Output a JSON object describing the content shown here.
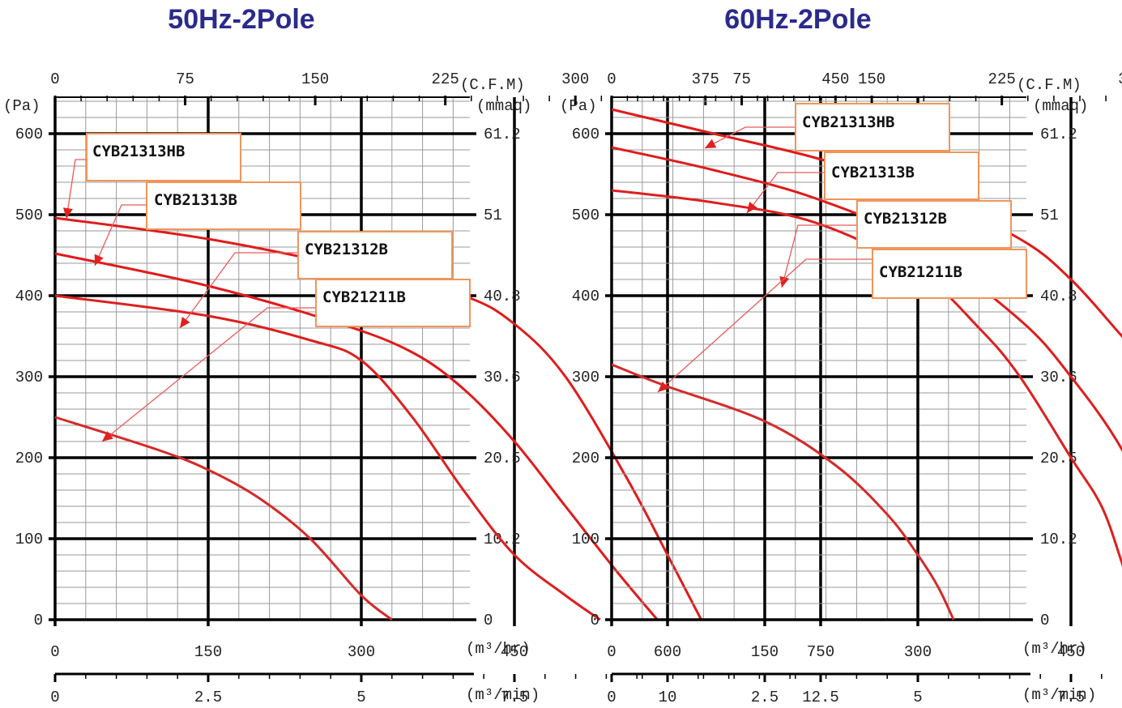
{
  "chart_data": [
    {
      "type": "line",
      "title": "50Hz-2Pole",
      "left_axis_label": "(Pa)",
      "right_axis_label": "(mmaq)",
      "top_axis_label": "(C.F.M)",
      "bottom_axis_label": "(m³/hr)",
      "bottom2_axis_label": "(m³/min)",
      "y_ticks": [
        "0",
        "100",
        "200",
        "300",
        "400",
        "500",
        "600"
      ],
      "y2_ticks": [
        "0",
        "10.2",
        "20.5",
        "30.6",
        "40.8",
        "51",
        "61.2"
      ],
      "top_ticks": [
        "0",
        "75",
        "150",
        "225",
        "300",
        "375",
        "450"
      ],
      "x_ticks": [
        "0",
        "150",
        "300",
        "450",
        "600",
        "750"
      ],
      "x2_ticks": [
        "0",
        "2.5",
        "5",
        "7.5",
        "10",
        "12.5"
      ],
      "xlim": [
        0,
        810
      ],
      "ylim": [
        0,
        640
      ],
      "series": [
        {
          "name": "CYB21313HB",
          "x": [
            0,
            150,
            300,
            400,
            450,
            500,
            560,
            600,
            633
          ],
          "y": [
            496,
            470,
            432,
            400,
            365,
            300,
            175,
            80,
            0
          ]
        },
        {
          "name": "CYB21313B",
          "x": [
            0,
            150,
            280,
            350,
            400,
            450,
            500,
            550,
            590
          ],
          "y": [
            452,
            412,
            365,
            330,
            285,
            220,
            140,
            60,
            0
          ]
        },
        {
          "name": "CYB21312B",
          "x": [
            0,
            150,
            250,
            300,
            350,
            400,
            450,
            500,
            534
          ],
          "y": [
            400,
            375,
            345,
            320,
            250,
            160,
            80,
            30,
            0
          ]
        },
        {
          "name": "CYB21211B",
          "x": [
            0,
            100,
            150,
            200,
            250,
            300,
            330
          ],
          "y": [
            250,
            210,
            185,
            150,
            100,
            30,
            0
          ]
        }
      ]
    },
    {
      "type": "line",
      "title": "60Hz-2Pole",
      "left_axis_label": "(Pa)",
      "right_axis_label": "(mmaq)",
      "top_axis_label": "(C.F.M)",
      "bottom_axis_label": "(m³/hr)",
      "bottom2_axis_label": "(m³/min)",
      "y_ticks": [
        "0",
        "100",
        "200",
        "300",
        "400",
        "500",
        "600"
      ],
      "y2_ticks": [
        "0",
        "10.2",
        "20.5",
        "30.6",
        "40.8",
        "51",
        "61.2"
      ],
      "top_ticks": [
        "0",
        "75",
        "150",
        "225",
        "300",
        "375",
        "450"
      ],
      "x_ticks": [
        "0",
        "150",
        "300",
        "450",
        "600",
        "750"
      ],
      "x2_ticks": [
        "0",
        "2.5",
        "5",
        "7.5",
        "10",
        "12.5"
      ],
      "xlim": [
        0,
        810
      ],
      "ylim": [
        0,
        640
      ],
      "series": [
        {
          "name": "CYB21313HB",
          "x": [
            0,
            100,
            200,
            300,
            400,
            450,
            500,
            550,
            600,
            650,
            666
          ],
          "y": [
            630,
            600,
            570,
            530,
            470,
            420,
            350,
            280,
            200,
            80,
            0
          ]
        },
        {
          "name": "CYB21313B",
          "x": [
            0,
            100,
            200,
            300,
            400,
            450,
            500,
            540,
            564
          ],
          "y": [
            583,
            555,
            520,
            465,
            370,
            300,
            210,
            100,
            0
          ]
        },
        {
          "name": "CYB21312B",
          "x": [
            0,
            100,
            200,
            300,
            360,
            400,
            450,
            480,
            500,
            518
          ],
          "y": [
            530,
            515,
            490,
            430,
            360,
            300,
            200,
            140,
            70,
            0
          ]
        },
        {
          "name": "CYB21211B",
          "x": [
            0,
            50,
            150,
            220,
            270,
            300,
            320,
            335
          ],
          "y": [
            315,
            290,
            245,
            190,
            130,
            80,
            40,
            0
          ]
        }
      ]
    }
  ]
}
